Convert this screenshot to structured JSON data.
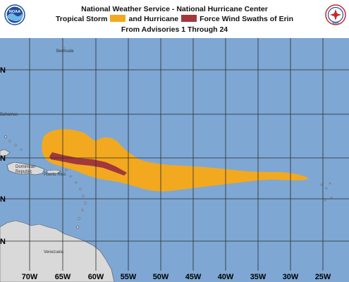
{
  "header": {
    "line1": "National Weather Service - National Hurricane Center",
    "ts_label": "Tropical Storm",
    "hu_label": "and Hurricane",
    "tail": "Force Wind Swaths of Erin",
    "line3": "From Advisories 1 Through 24"
  },
  "colors": {
    "ocean": "#7ea7d4",
    "land": "#d9d9d9",
    "tropical_storm": "#f2a91f",
    "hurricane": "#a3383c",
    "grid": "#2b2b2b"
  },
  "logos": {
    "left": "noaa-logo",
    "right": "nws-logo",
    "left_text": "NOAA",
    "right_text": "NWS"
  },
  "places": {
    "bermuda": "Bermuda",
    "bahamas": "Bahamas",
    "dominican": "Dominican",
    "republic": "Republic",
    "puerto_rico": "Puerto Rico",
    "venezuela": "Venezuela"
  },
  "lon_labels": [
    "70W",
    "65W",
    "60W",
    "55W",
    "50W",
    "45W",
    "40W",
    "35W",
    "30W",
    "25W"
  ],
  "lat_labels": [
    "N",
    "N",
    "N",
    "N"
  ]
}
